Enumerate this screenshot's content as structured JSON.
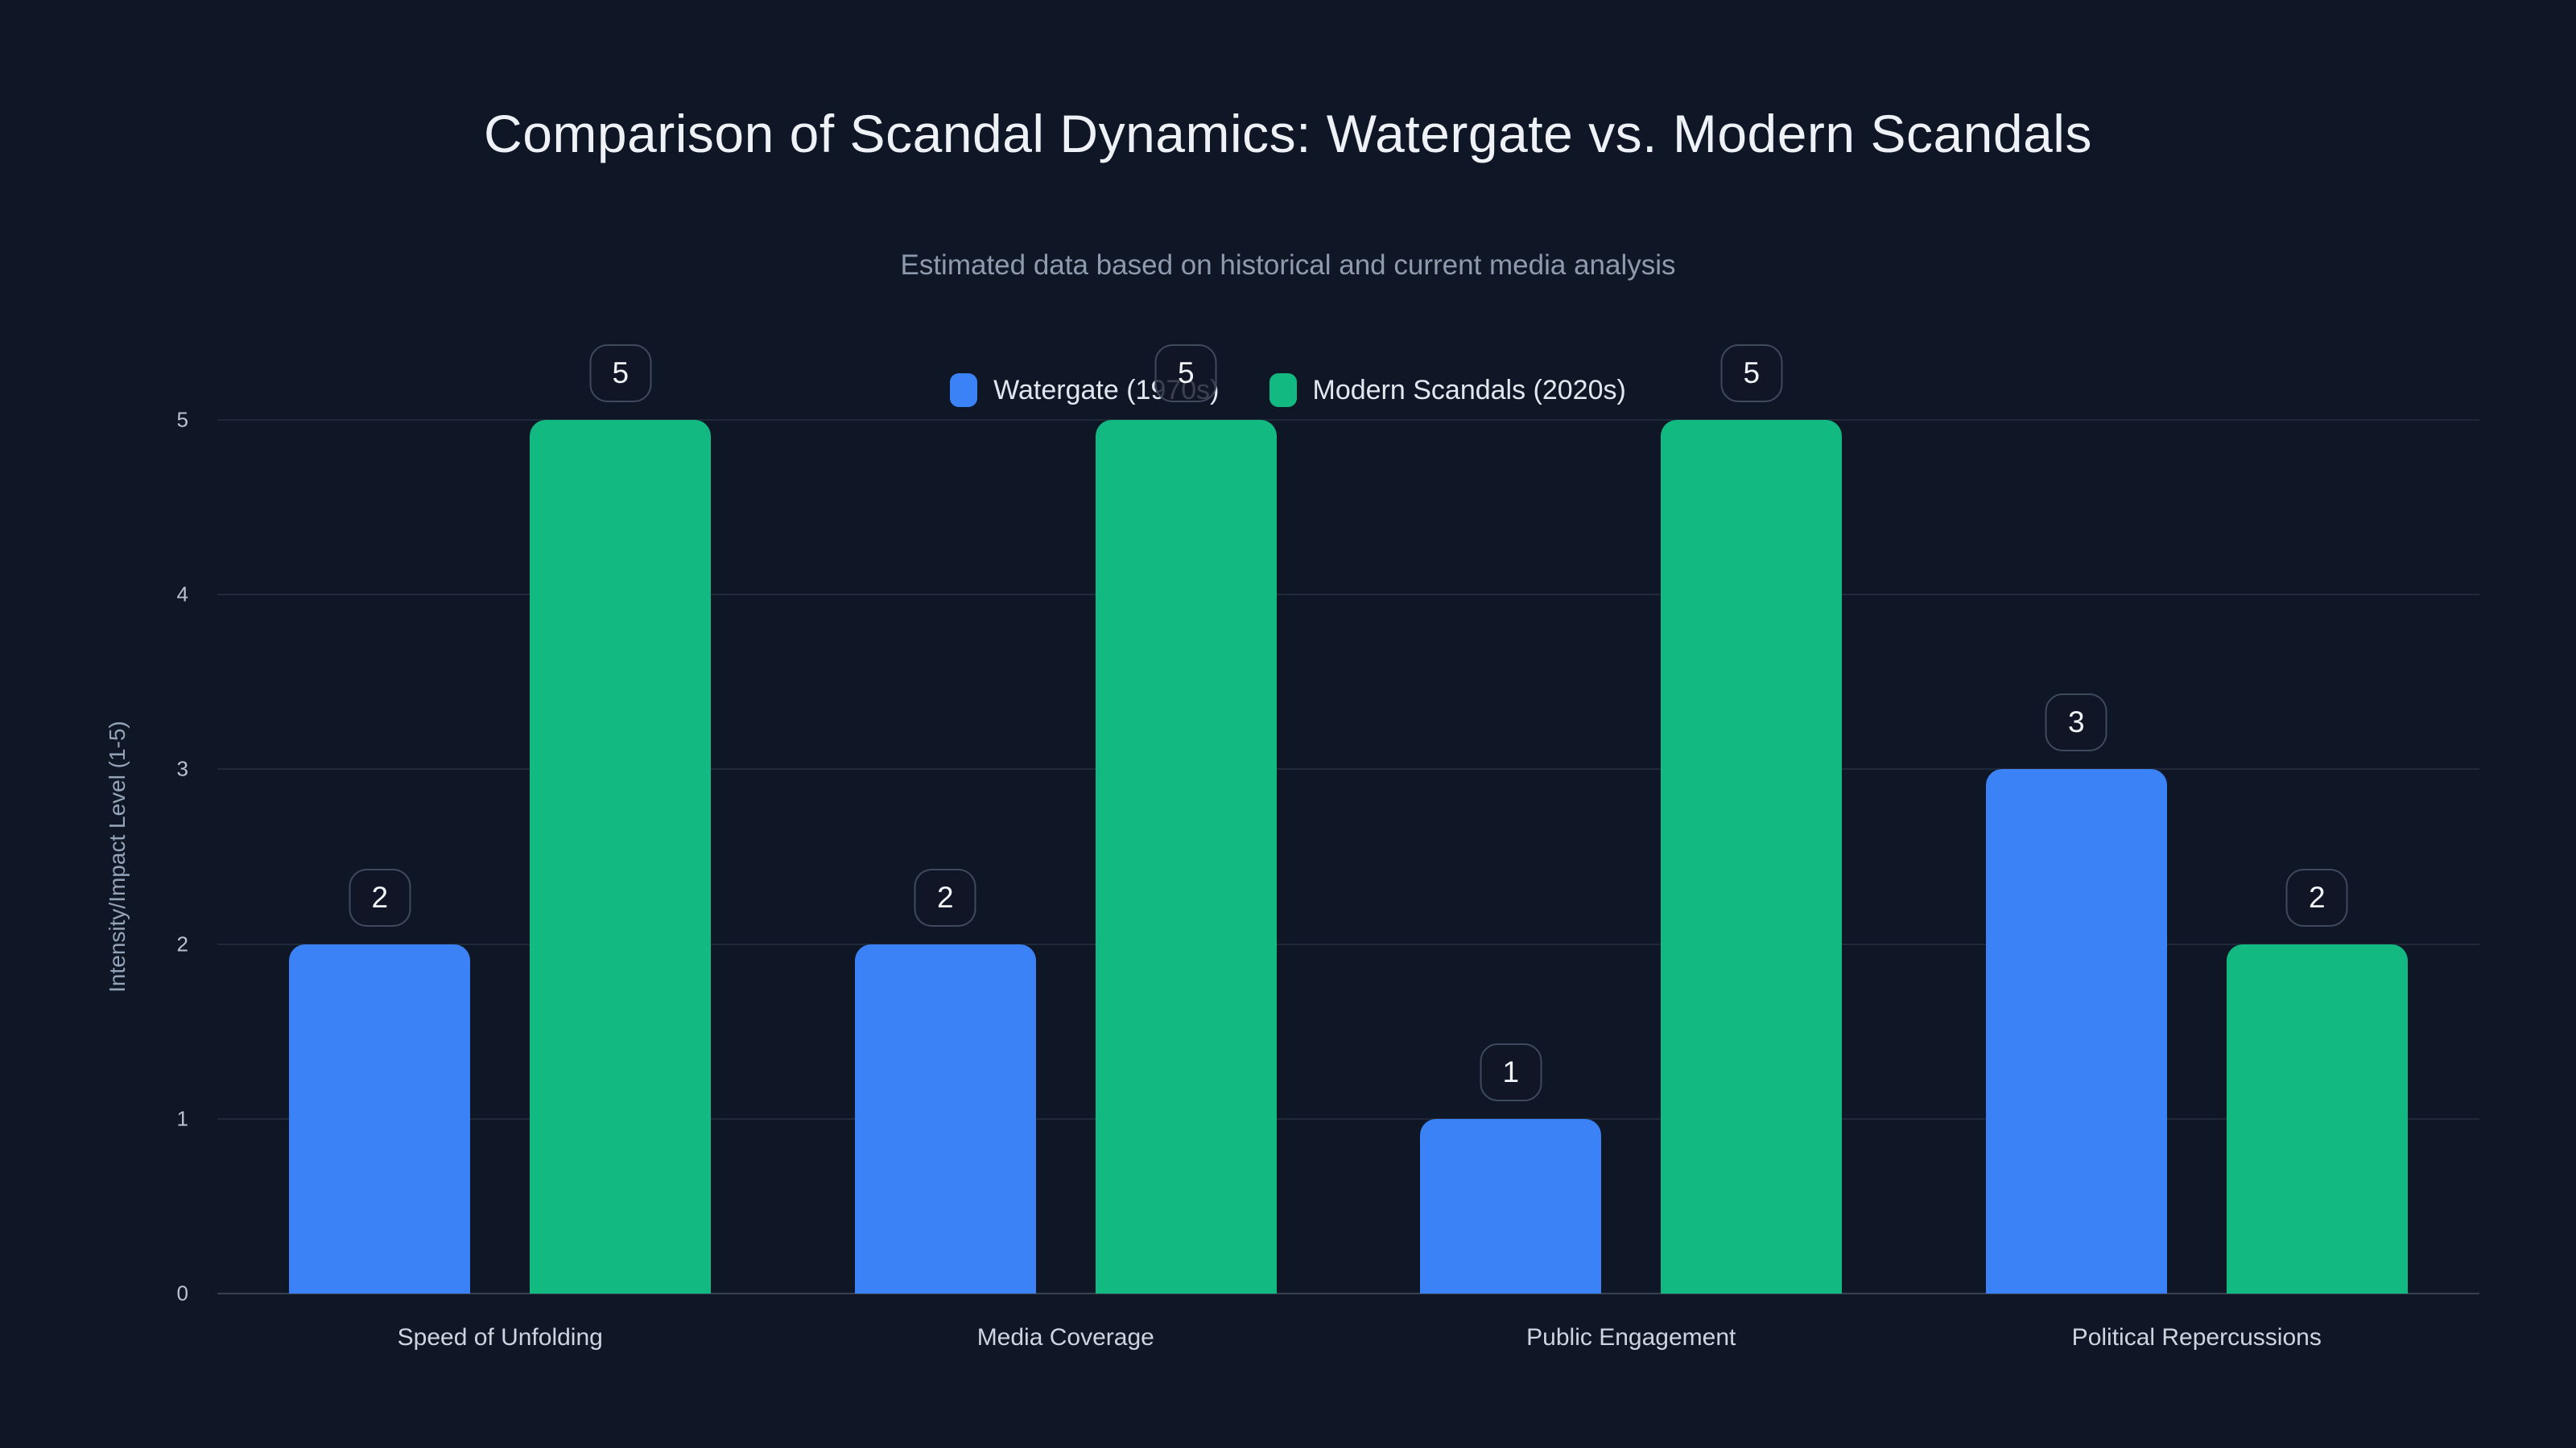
{
  "colors": {
    "background": "#0f1726",
    "watergate_blue": "#3b82f6",
    "modern_green": "#12b981",
    "gridline": "rgba(148,163,184,0.13)",
    "axis_baseline": "rgba(148,163,184,0.30)",
    "badge_border": "#3e4a5e",
    "title_text": "#eef2f7",
    "subtitle_text": "#8e9aad"
  },
  "chart_data": {
    "type": "bar",
    "title": "Comparison of Scandal Dynamics: Watergate vs. Modern Scandals",
    "subtitle": "Estimated data based on historical and current media analysis",
    "categories": [
      "Speed of Unfolding",
      "Media Coverage",
      "Public Engagement",
      "Political Repercussions"
    ],
    "series": [
      {
        "name": "Watergate (1970s)",
        "color": "#3b82f6",
        "values": [
          2,
          2,
          1,
          3
        ]
      },
      {
        "name": "Modern Scandals (2020s)",
        "color": "#12b981",
        "values": [
          5,
          5,
          5,
          2
        ]
      }
    ],
    "xlabel": "",
    "ylabel": "Intensity/Impact Level (1-5)",
    "ylim": [
      0,
      5
    ],
    "yticks": [
      0,
      1,
      2,
      3,
      4,
      5
    ],
    "grid": true,
    "legend_position": "top-center",
    "data_labels": "value shown in rounded outlined box above each bar"
  }
}
